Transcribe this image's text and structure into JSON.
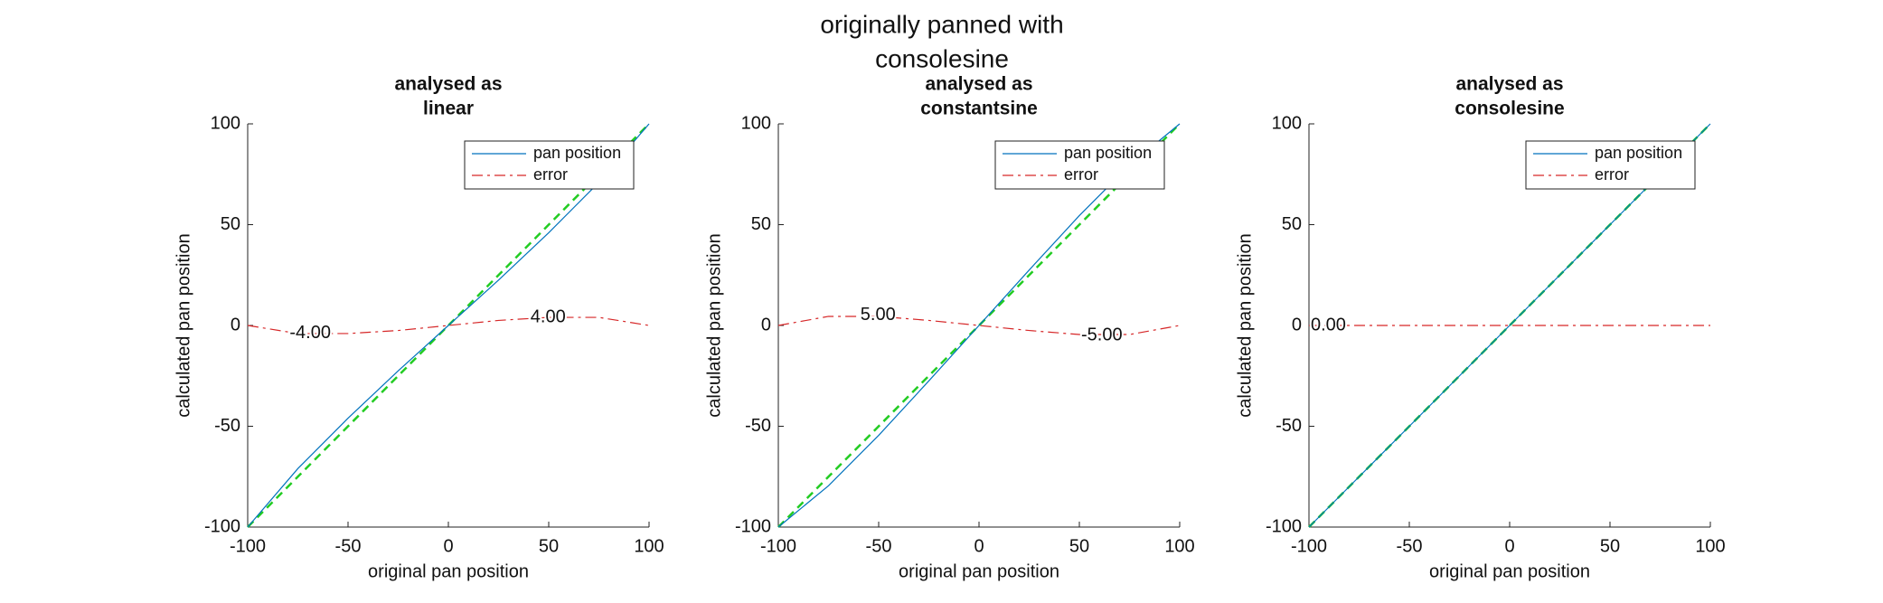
{
  "title": [
    "originally panned with",
    "consolesine"
  ],
  "chart_data": [
    {
      "type": "line",
      "title": [
        "analysed as",
        "linear"
      ],
      "xlabel": "original pan position",
      "ylabel": "calculated pan position",
      "x": [
        -100,
        -75,
        -50,
        -25,
        0,
        25,
        50,
        75,
        100
      ],
      "series": [
        {
          "name": "pan position",
          "color": "#0072bd",
          "values": [
            -100,
            -71,
            -46,
            -22.5,
            0,
            22.5,
            46,
            71,
            100
          ]
        },
        {
          "name": "error",
          "color": "#d62728",
          "values": [
            0,
            -4,
            -4,
            -2.5,
            0,
            2.5,
            4,
            4,
            0
          ]
        }
      ],
      "reference": {
        "color": "#22cc22",
        "values": [
          -100,
          -75,
          -50,
          -25,
          0,
          25,
          50,
          75,
          100
        ]
      },
      "annotations": [
        {
          "text": "-4.00",
          "x": -80,
          "y": -4
        },
        {
          "text": "4.00",
          "x": 40,
          "y": 4
        }
      ],
      "xlim": [
        -100,
        100
      ],
      "ylim": [
        -100,
        100
      ],
      "xticks": [
        -100,
        -50,
        0,
        50,
        100
      ],
      "yticks": [
        -100,
        -50,
        0,
        50,
        100
      ],
      "legend": "upper right"
    },
    {
      "type": "line",
      "title": [
        "analysed as",
        "constantsine"
      ],
      "xlabel": "original pan position",
      "ylabel": "calculated pan position",
      "x": [
        -100,
        -75,
        -50,
        -25,
        0,
        25,
        50,
        75,
        100
      ],
      "series": [
        {
          "name": "pan position",
          "color": "#0072bd",
          "values": [
            -100,
            -79.5,
            -54.5,
            -27.5,
            0,
            27.5,
            54.5,
            79.5,
            100
          ]
        },
        {
          "name": "error",
          "color": "#d62728",
          "values": [
            0,
            4.5,
            4.5,
            2.5,
            0,
            -2.5,
            -4.5,
            -4.5,
            0
          ]
        }
      ],
      "reference": {
        "color": "#22cc22",
        "values": [
          -100,
          -75,
          -50,
          -25,
          0,
          25,
          50,
          75,
          100
        ]
      },
      "annotations": [
        {
          "text": "5.00",
          "x": -60,
          "y": 5
        },
        {
          "text": "-5.00",
          "x": 50,
          "y": -5
        }
      ],
      "xlim": [
        -100,
        100
      ],
      "ylim": [
        -100,
        100
      ],
      "xticks": [
        -100,
        -50,
        0,
        50,
        100
      ],
      "yticks": [
        -100,
        -50,
        0,
        50,
        100
      ],
      "legend": "upper right"
    },
    {
      "type": "line",
      "title": [
        "analysed as",
        "consolesine"
      ],
      "xlabel": "original pan position",
      "ylabel": "calculated pan position",
      "x": [
        -100,
        -75,
        -50,
        -25,
        0,
        25,
        50,
        75,
        100
      ],
      "series": [
        {
          "name": "pan position",
          "color": "#0072bd",
          "values": [
            -100,
            -75,
            -50,
            -25,
            0,
            25,
            50,
            75,
            100
          ]
        },
        {
          "name": "error",
          "color": "#d62728",
          "values": [
            0,
            0,
            0,
            0,
            0,
            0,
            0,
            0,
            0
          ]
        }
      ],
      "reference": {
        "color": "#22cc22",
        "values": [
          -100,
          -75,
          -50,
          -25,
          0,
          25,
          50,
          75,
          100
        ]
      },
      "annotations": [
        {
          "text": "0.00",
          "x": -100,
          "y": 0
        }
      ],
      "xlim": [
        -100,
        100
      ],
      "ylim": [
        -100,
        100
      ],
      "xticks": [
        -100,
        -50,
        0,
        50,
        100
      ],
      "yticks": [
        -100,
        -50,
        0,
        50,
        100
      ],
      "legend": "upper right"
    }
  ]
}
